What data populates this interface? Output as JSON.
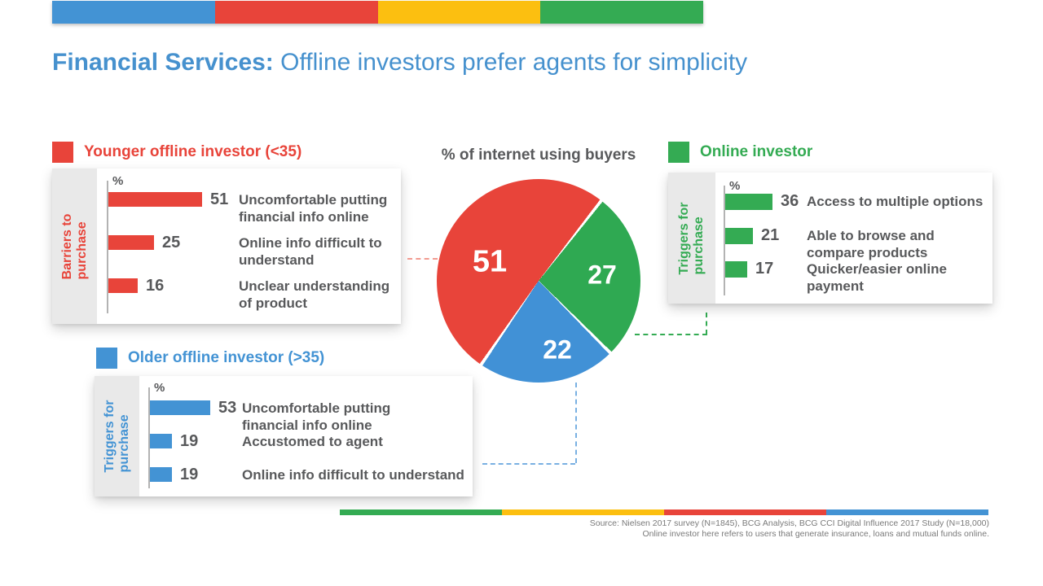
{
  "slide": {
    "title_bold": "Financial Services:",
    "title_rest": " Offline investors prefer agents for simplicity"
  },
  "colors": {
    "blue": "#4393d4",
    "red": "#e8443a",
    "yellow": "#fcbf10",
    "green": "#34ab53"
  },
  "top_bar_colors": [
    "#4393d4",
    "#e8443a",
    "#fcbf10",
    "#34ab53"
  ],
  "bottom_bar_colors": [
    "#34ab53",
    "#fcbf10",
    "#e8443a",
    "#4393d4"
  ],
  "pie": {
    "title": "% of internet using buyers",
    "start_angle_deg": 38,
    "slices": [
      {
        "name": "Online investor",
        "value": 27,
        "color": "#2fa952"
      },
      {
        "name": "Older offline investor (>35)",
        "value": 22,
        "color": "#4191d6"
      },
      {
        "name": "Younger offline investor (<35)",
        "value": 51,
        "color": "#e8443a"
      }
    ]
  },
  "panels": {
    "younger": {
      "legend": "Younger offline investor (<35)",
      "color": "#e8443a",
      "side_label": "Barriers to\npurchase",
      "axis_label": "%",
      "bars": [
        {
          "value": 51,
          "label": "Uncomfortable putting\nfinancial info online"
        },
        {
          "value": 25,
          "label": "Online info difficult to\nunderstand"
        },
        {
          "value": 16,
          "label": "Unclear understanding\nof product"
        }
      ]
    },
    "online": {
      "legend": "Online investor",
      "color": "#34ab53",
      "side_label": "Triggers for\npurchase",
      "axis_label": "%",
      "bars": [
        {
          "value": 36,
          "label": "Access to multiple options"
        },
        {
          "value": 21,
          "label": "Able to browse and\ncompare products"
        },
        {
          "value": 17,
          "label": "Quicker/easier online\npayment"
        }
      ]
    },
    "older": {
      "legend": "Older offline investor (>35)",
      "color": "#4393d4",
      "side_label": "Triggers for\npurchase",
      "axis_label": "%",
      "bars": [
        {
          "value": 53,
          "label": "Uncomfortable putting\nfinancial info online"
        },
        {
          "value": 19,
          "label": "Accustomed to agent"
        },
        {
          "value": 19,
          "label": "Online info difficult to understand"
        }
      ]
    }
  },
  "footer": {
    "source_line1": "Source: Nielsen 2017 survey (N=1845), BCG Analysis, BCG CCI Digital Influence 2017 Study (N=18,000)",
    "source_line2": "Online investor here refers to users that generate insurance, loans and mutual funds online."
  },
  "chart_data": [
    {
      "type": "pie",
      "title": "% of internet using buyers",
      "labels": [
        "Younger offline investor (<35)",
        "Online investor",
        "Older offline investor (>35)"
      ],
      "values": [
        51,
        27,
        22
      ],
      "colors": [
        "#e8443a",
        "#2fa952",
        "#4191d6"
      ],
      "unit": "%",
      "legend_position": "external-panels"
    },
    {
      "type": "bar",
      "orientation": "horizontal",
      "title": "Younger offline investor (<35) — Barriers to purchase",
      "categories": [
        "Uncomfortable putting financial info online",
        "Online info difficult to understand",
        "Unclear understanding of product"
      ],
      "values": [
        51,
        25,
        16
      ],
      "xlabel": "%",
      "color": "#e8443a"
    },
    {
      "type": "bar",
      "orientation": "horizontal",
      "title": "Online investor — Triggers for purchase",
      "categories": [
        "Access to multiple options",
        "Able to browse and compare products",
        "Quicker/easier online payment"
      ],
      "values": [
        36,
        21,
        17
      ],
      "xlabel": "%",
      "color": "#34ab53"
    },
    {
      "type": "bar",
      "orientation": "horizontal",
      "title": "Older offline investor (>35) — Triggers for purchase",
      "categories": [
        "Uncomfortable putting financial info online",
        "Accustomed to agent",
        "Online info difficult to understand"
      ],
      "values": [
        53,
        19,
        19
      ],
      "xlabel": "%",
      "color": "#4393d4"
    }
  ]
}
